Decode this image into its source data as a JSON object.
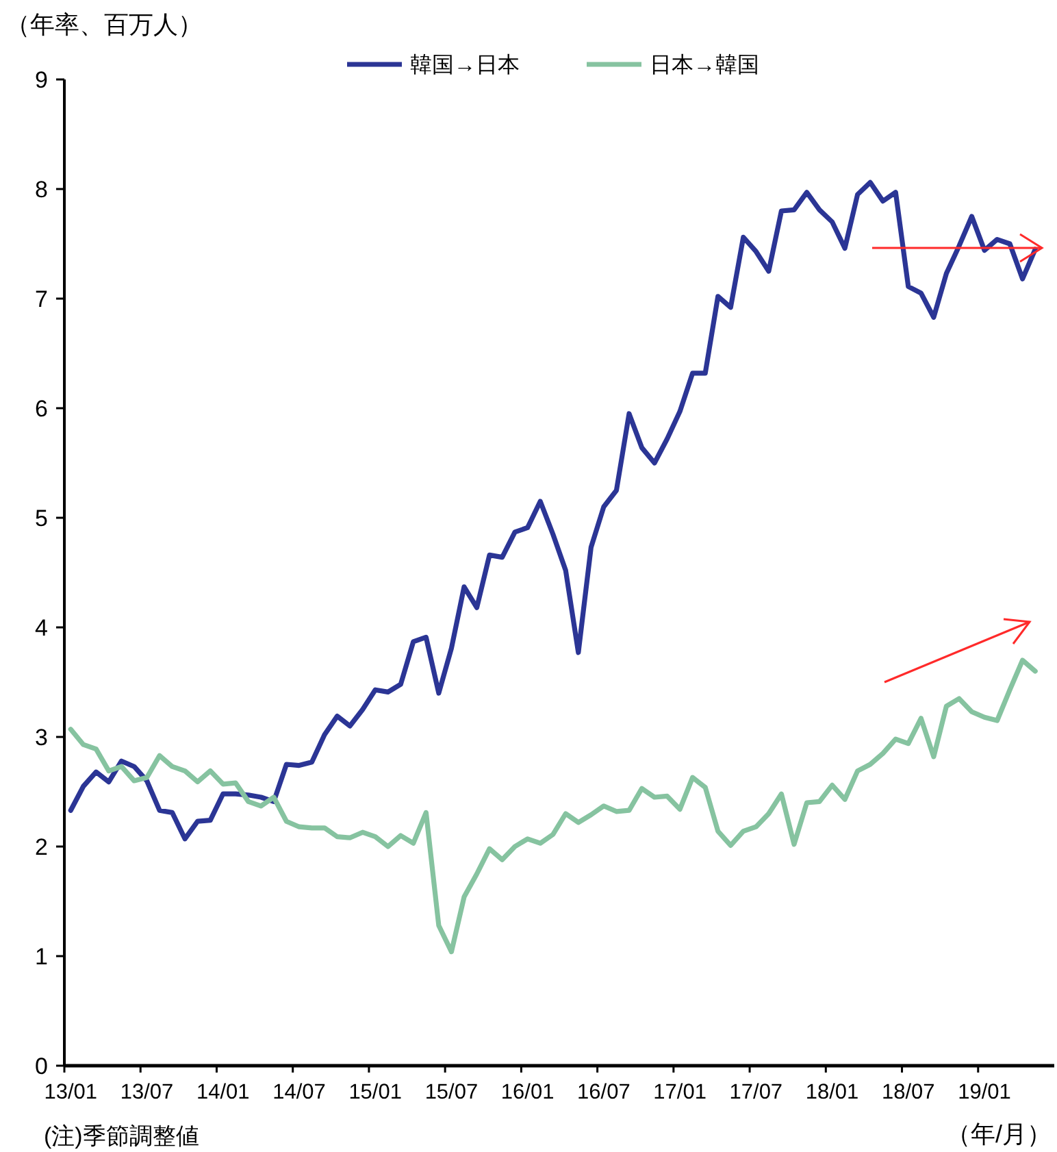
{
  "chart_data": {
    "type": "line",
    "ylabel": "（年率、百万人）",
    "xlabel": "（年/月）",
    "categories": [
      "13/01",
      null,
      null,
      null,
      null,
      null,
      "13/07",
      null,
      null,
      null,
      null,
      null,
      "14/01",
      null,
      null,
      null,
      null,
      null,
      "14/07",
      null,
      null,
      null,
      null,
      null,
      "15/01",
      null,
      null,
      null,
      null,
      null,
      "15/07",
      null,
      null,
      null,
      null,
      null,
      "16/01",
      null,
      null,
      null,
      null,
      null,
      "16/07",
      null,
      null,
      null,
      null,
      null,
      "17/01",
      null,
      null,
      null,
      null,
      null,
      "17/07",
      null,
      null,
      null,
      null,
      null,
      "18/01",
      null,
      null,
      null,
      null,
      null,
      "18/07",
      null,
      null,
      null,
      null,
      null,
      "19/01",
      null,
      null,
      null,
      null,
      null
    ],
    "series": [
      {
        "name": "韓国→日本",
        "color": "#2b3595",
        "values": [
          2.33,
          2.55,
          2.68,
          2.59,
          2.78,
          2.73,
          2.6,
          2.33,
          2.31,
          2.07,
          2.23,
          2.24,
          2.48,
          2.48,
          2.47,
          2.45,
          2.41,
          2.75,
          2.74,
          2.77,
          3.02,
          3.19,
          3.1,
          3.25,
          3.43,
          3.41,
          3.48,
          3.87,
          3.91,
          3.4,
          3.81,
          4.37,
          4.18,
          4.66,
          4.64,
          4.87,
          4.91,
          5.15,
          4.85,
          4.52,
          3.77,
          4.73,
          5.1,
          5.25,
          5.95,
          5.64,
          5.5,
          5.72,
          5.97,
          6.32,
          6.32,
          7.02,
          6.92,
          7.56,
          7.43,
          7.25,
          7.8,
          7.81,
          7.97,
          7.81,
          7.7,
          7.46,
          7.95,
          8.06,
          7.89,
          7.97,
          7.11,
          7.05,
          6.83,
          7.23,
          7.48,
          7.75,
          7.44,
          7.54,
          7.5,
          7.18,
          7.45,
          null
        ]
      },
      {
        "name": "日本→韓国",
        "color": "#86c3a0",
        "values": [
          3.07,
          2.93,
          2.89,
          2.69,
          2.73,
          2.6,
          2.63,
          2.83,
          2.73,
          2.69,
          2.59,
          2.69,
          2.57,
          2.58,
          2.41,
          2.37,
          2.45,
          2.23,
          2.18,
          2.17,
          2.17,
          2.09,
          2.08,
          2.13,
          2.09,
          2.0,
          2.1,
          2.03,
          2.31,
          1.28,
          1.04,
          1.54,
          1.75,
          1.98,
          1.88,
          2.0,
          2.07,
          2.03,
          2.11,
          2.3,
          2.22,
          2.29,
          2.37,
          2.32,
          2.33,
          2.53,
          2.45,
          2.46,
          2.34,
          2.63,
          2.54,
          2.14,
          2.01,
          2.14,
          2.18,
          2.3,
          2.48,
          2.02,
          2.4,
          2.41,
          2.56,
          2.43,
          2.69,
          2.75,
          2.85,
          2.98,
          2.94,
          3.17,
          2.82,
          3.28,
          3.35,
          3.23,
          3.18,
          3.15,
          3.43,
          3.7,
          3.6,
          null
        ]
      }
    ],
    "ylim": [
      0,
      9
    ],
    "yticks": [
      0,
      1,
      2,
      3,
      4,
      5,
      6,
      7,
      8,
      9
    ],
    "grid": false,
    "legend": "top",
    "marker": "none",
    "line_style": "solid",
    "annotations": [
      "(注)季節調整値"
    ]
  }
}
